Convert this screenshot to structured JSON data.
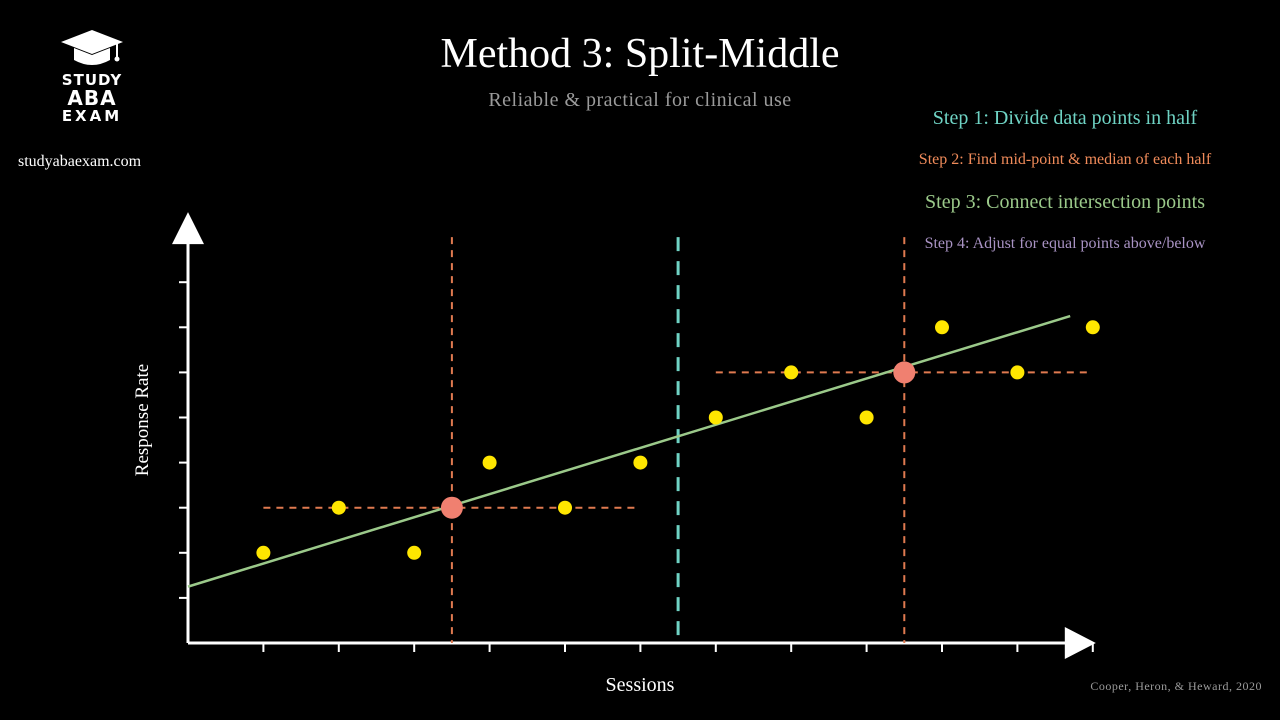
{
  "branding": {
    "logo_line1": "STUDY",
    "logo_line2": "ABA",
    "logo_line3": "EXAM",
    "website": "studyabaexam.com",
    "icon": "graduation-cap-icon"
  },
  "header": {
    "title": "Method 3: Split-Middle",
    "subtitle": "Reliable & practical for clinical use"
  },
  "steps": [
    {
      "label": "Step 1: Divide data points in half",
      "color": "#6fd3c4"
    },
    {
      "label": "Step 2: Find mid-point & median of each half",
      "color": "#f08b5a"
    },
    {
      "label": "Step 3: Connect intersection points",
      "color": "#9bc98a"
    },
    {
      "label": "Step 4: Adjust for equal points above/below",
      "color": "#a993c4"
    }
  ],
  "citation": "Cooper, Heron, & Heward, 2020",
  "chart_data": {
    "type": "scatter",
    "xlabel": "Sessions",
    "ylabel": "Response Rate",
    "xlim": [
      0,
      12
    ],
    "ylim": [
      0,
      9
    ],
    "grid": false,
    "series": [
      {
        "x": [
          1,
          2,
          3,
          4,
          5,
          6,
          7,
          8,
          9,
          10,
          11,
          12
        ],
        "y": [
          2,
          3,
          2,
          4,
          3,
          4,
          5,
          6,
          5,
          7,
          6,
          7
        ],
        "color": "#ffe600"
      }
    ],
    "split_x": 6.5,
    "medians": [
      {
        "x": 3.5,
        "y": 3,
        "x_range": [
          1,
          6
        ]
      },
      {
        "x": 9.5,
        "y": 6,
        "x_range": [
          7,
          12
        ]
      }
    ],
    "trend_line": {
      "x": [
        0,
        11.7
      ],
      "y": [
        1.25,
        7.25
      ],
      "color": "#9bc98a"
    },
    "colors": {
      "points": "#ffe600",
      "median_lines": "#e07a50",
      "intersection": "#f08070",
      "split_line": "#6fd3c4",
      "axes": "#ffffff"
    }
  }
}
